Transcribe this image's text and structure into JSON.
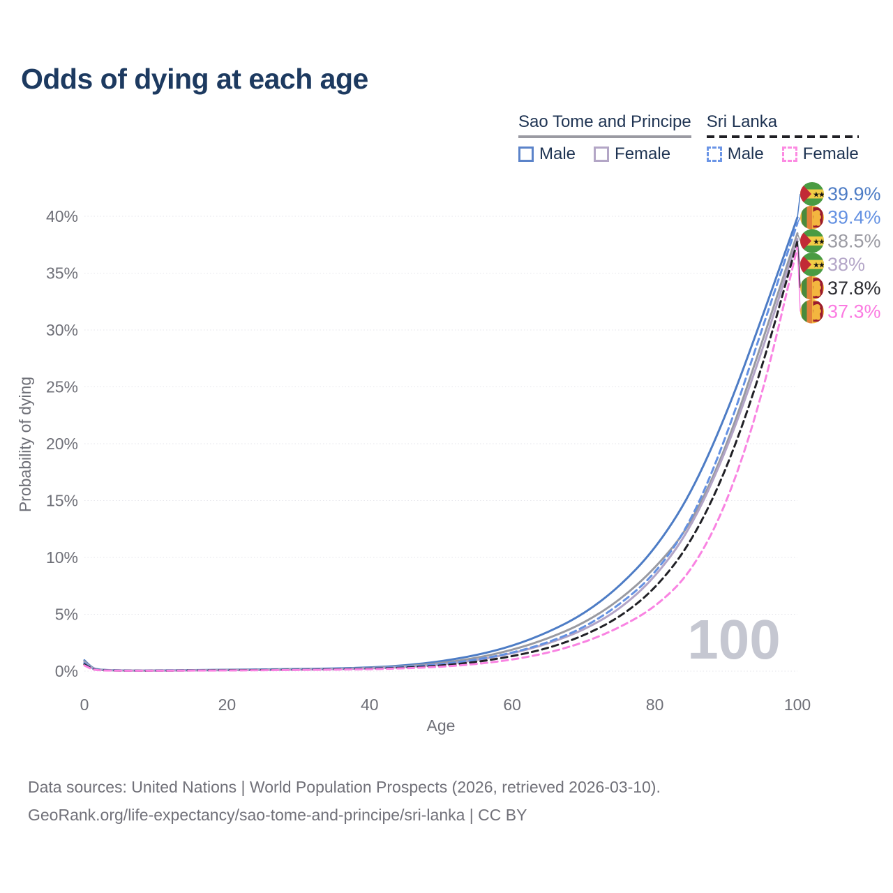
{
  "title": "Odds of dying at each age",
  "watermark": "100",
  "footer": {
    "line1": "Data sources: United Nations | World Population Prospects (2026, retrieved 2026-03-10).",
    "line2": "GeoRank.org/life-expectancy/sao-tome-and-principe/sri-lanka | CC BY"
  },
  "legend": {
    "groups": [
      {
        "name": "Sao Tome and Principe",
        "underline_style": "solid",
        "underline_color": "#9a9aa2",
        "items": [
          {
            "label": "Male",
            "box_color": "#5b83c9",
            "box_dashed": false
          },
          {
            "label": "Female",
            "box_color": "#b3a6c6",
            "box_dashed": false
          }
        ]
      },
      {
        "name": "Sri Lanka",
        "underline_style": "dashed",
        "underline_color": "#1f1f24",
        "items": [
          {
            "label": "Male",
            "box_color": "#6b95e6",
            "box_dashed": true
          },
          {
            "label": "Female",
            "box_color": "#fc8ae2",
            "box_dashed": true
          }
        ]
      }
    ]
  },
  "chart_data": {
    "type": "line",
    "title": "Odds of dying at each age",
    "xlabel": "Age",
    "ylabel": "Probability of dying",
    "xlim": [
      0,
      100
    ],
    "ylim_percent": [
      0,
      40
    ],
    "x_ticks": [
      0,
      20,
      40,
      60,
      80,
      100
    ],
    "y_ticks_percent": [
      0,
      5,
      10,
      15,
      20,
      25,
      30,
      35,
      40
    ],
    "grid": "horizontal-dotted",
    "legend_position": "top-right",
    "ages": [
      0,
      1,
      2,
      5,
      10,
      15,
      20,
      25,
      30,
      35,
      40,
      45,
      50,
      55,
      60,
      65,
      70,
      75,
      80,
      85,
      90,
      95,
      100
    ],
    "series": [
      {
        "name": "Sao Tome and Principe — Male",
        "country": "Sao Tome and Principe",
        "sex": "Male",
        "color": "#4d7cc5",
        "dash": "solid",
        "flag": "sao-tome-flag",
        "values_percent": [
          0.95,
          0.3,
          0.12,
          0.07,
          0.06,
          0.09,
          0.12,
          0.15,
          0.18,
          0.23,
          0.32,
          0.5,
          0.85,
          1.4,
          2.2,
          3.4,
          5.0,
          7.4,
          10.7,
          15.5,
          22.5,
          31.0,
          39.9
        ]
      },
      {
        "name": "Sao Tome and Principe — Both sexes",
        "country": "Sao Tome and Principe",
        "sex": "Both",
        "color": "#999aa1",
        "dash": "solid",
        "flag": "sao-tome-flag",
        "values_percent": [
          0.85,
          0.27,
          0.11,
          0.06,
          0.05,
          0.08,
          0.1,
          0.13,
          0.16,
          0.2,
          0.28,
          0.42,
          0.7,
          1.15,
          1.85,
          2.85,
          4.2,
          6.2,
          9.0,
          12.8,
          19.6,
          28.8,
          38.5
        ]
      },
      {
        "name": "Sao Tome and Principe — Female",
        "country": "Sao Tome and Principe",
        "sex": "Female",
        "color": "#b2a4c6",
        "dash": "solid",
        "flag": "sao-tome-flag",
        "values_percent": [
          0.75,
          0.24,
          0.1,
          0.05,
          0.04,
          0.06,
          0.08,
          0.1,
          0.13,
          0.17,
          0.24,
          0.36,
          0.58,
          0.95,
          1.55,
          2.4,
          3.6,
          5.4,
          8.2,
          12.5,
          19.3,
          28.0,
          38.0
        ]
      },
      {
        "name": "Sri Lanka — Male",
        "country": "Sri Lanka",
        "sex": "Male",
        "color": "#6491e2",
        "dash": "dashed",
        "flag": "sri-lanka-flag",
        "values_percent": [
          0.7,
          0.22,
          0.1,
          0.05,
          0.05,
          0.07,
          0.09,
          0.12,
          0.15,
          0.19,
          0.26,
          0.38,
          0.6,
          1.0,
          1.6,
          2.5,
          3.8,
          5.8,
          8.5,
          13.0,
          20.5,
          30.0,
          39.4
        ]
      },
      {
        "name": "Sri Lanka — Both sexes",
        "country": "Sri Lanka",
        "sex": "Both",
        "color": "#212126",
        "dash": "dashed",
        "flag": "sri-lanka-flag",
        "values_percent": [
          0.6,
          0.19,
          0.08,
          0.045,
          0.04,
          0.06,
          0.08,
          0.1,
          0.12,
          0.15,
          0.21,
          0.3,
          0.48,
          0.8,
          1.3,
          2.0,
          3.1,
          4.7,
          7.2,
          11.2,
          17.6,
          26.5,
          37.8
        ]
      },
      {
        "name": "Sri Lanka — Female",
        "country": "Sri Lanka",
        "sex": "Female",
        "color": "#f983e2",
        "dash": "dashed",
        "flag": "sri-lanka-flag",
        "values_percent": [
          0.5,
          0.16,
          0.07,
          0.04,
          0.035,
          0.05,
          0.06,
          0.08,
          0.1,
          0.13,
          0.17,
          0.25,
          0.38,
          0.62,
          1.0,
          1.6,
          2.5,
          3.8,
          5.6,
          8.6,
          14.5,
          24.0,
          37.3
        ]
      }
    ],
    "end_labels": [
      {
        "series_index": 0,
        "text": "39.9%",
        "color": "#4d7cc5",
        "flag": "sao-tome-flag",
        "value_percent": 39.9
      },
      {
        "series_index": 3,
        "text": "39.4%",
        "color": "#6491e2",
        "flag": "sri-lanka-flag",
        "value_percent": 39.4
      },
      {
        "series_index": 1,
        "text": "38.5%",
        "color": "#9b9ba3",
        "flag": "sao-tome-flag",
        "value_percent": 38.5
      },
      {
        "series_index": 2,
        "text": "38%",
        "color": "#b4a6c8",
        "flag": "sao-tome-flag",
        "value_percent": 38.0
      },
      {
        "series_index": 4,
        "text": "37.8%",
        "color": "#2b2b30",
        "flag": "sri-lanka-flag",
        "value_percent": 37.8
      },
      {
        "series_index": 5,
        "text": "37.3%",
        "color": "#fb7ae1",
        "flag": "sri-lanka-flag",
        "value_percent": 37.3
      }
    ],
    "annotations": {
      "age_counter_watermark": "100"
    }
  }
}
